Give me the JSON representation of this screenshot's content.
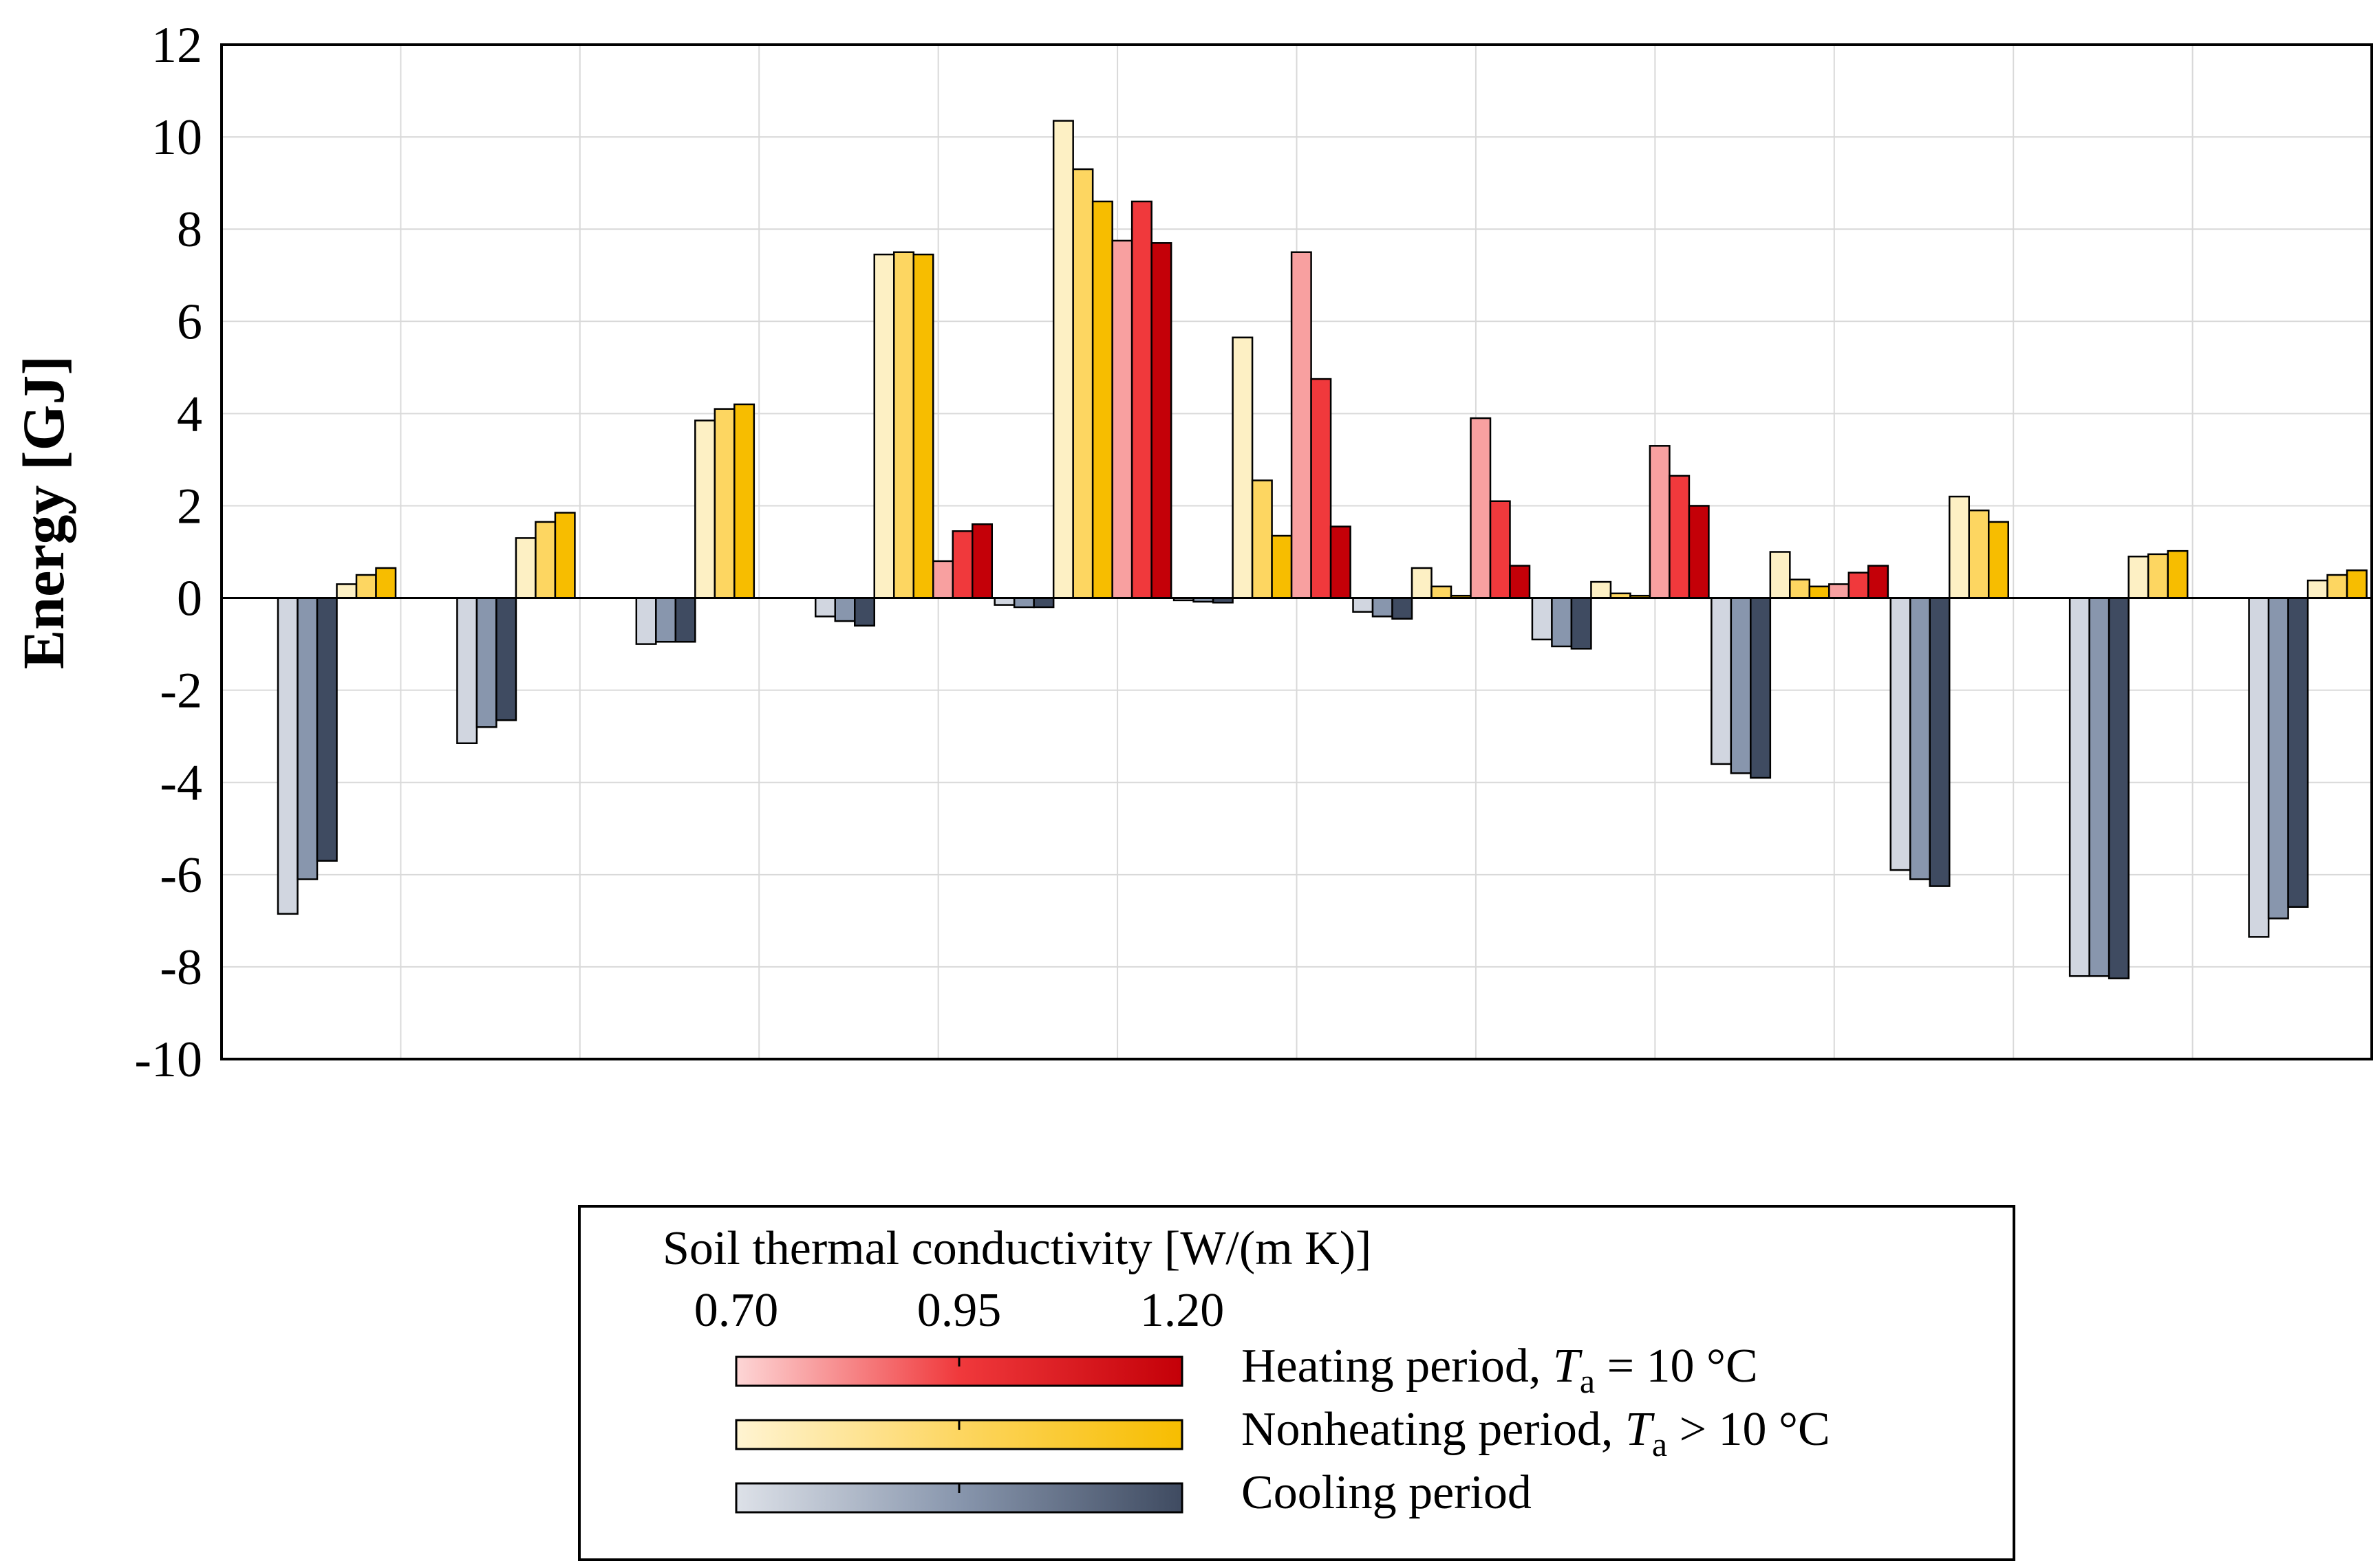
{
  "chart_data": {
    "type": "bar",
    "ylabel": "Energy [GJ]",
    "ylim": [
      -10,
      12
    ],
    "yticks": [
      -10,
      -8,
      -6,
      -4,
      -2,
      0,
      2,
      4,
      6,
      8,
      10,
      12
    ],
    "grid": true,
    "months": 12,
    "conductivity_levels": [
      0.7,
      0.95,
      1.2
    ],
    "series": [
      {
        "name": "Cooling period",
        "colors": [
          "#d1d6e0",
          "#8896ad",
          "#3f4b61"
        ],
        "values": [
          [
            -6.85,
            -6.1,
            -5.7
          ],
          [
            -3.15,
            -2.8,
            -2.65
          ],
          [
            -1.0,
            -0.95,
            -0.95
          ],
          [
            -0.4,
            -0.5,
            -0.6
          ],
          [
            -0.15,
            -0.2,
            -0.2
          ],
          [
            -0.05,
            -0.08,
            -0.1
          ],
          [
            -0.3,
            -0.4,
            -0.45
          ],
          [
            -0.9,
            -1.05,
            -1.1
          ],
          [
            -3.6,
            -3.8,
            -3.9
          ],
          [
            -5.9,
            -6.1,
            -6.25
          ],
          [
            -8.2,
            -8.2,
            -8.25
          ],
          [
            -7.35,
            -6.95,
            -6.7
          ]
        ]
      },
      {
        "name": "Nonheating period",
        "colors": [
          "#fdf0c4",
          "#fdd661",
          "#f7bd00"
        ],
        "values": [
          [
            0.3,
            0.5,
            0.65
          ],
          [
            1.3,
            1.65,
            1.85
          ],
          [
            3.85,
            4.1,
            4.2
          ],
          [
            7.45,
            7.5,
            7.45
          ],
          [
            10.35,
            9.3,
            8.6
          ],
          [
            5.65,
            2.55,
            1.35
          ],
          [
            0.65,
            0.25,
            0.05
          ],
          [
            0.35,
            0.1,
            0.05
          ],
          [
            1.0,
            0.4,
            0.25
          ],
          [
            2.2,
            1.9,
            1.65
          ],
          [
            0.9,
            0.95,
            1.02
          ],
          [
            0.38,
            0.5,
            0.6
          ]
        ]
      },
      {
        "name": "Heating period",
        "colors": [
          "#f8a0a0",
          "#f0393c",
          "#c40008"
        ],
        "values": [
          [
            0,
            0,
            0
          ],
          [
            0,
            0,
            0
          ],
          [
            0,
            0,
            0
          ],
          [
            0.8,
            1.45,
            1.6
          ],
          [
            7.75,
            8.6,
            7.7
          ],
          [
            7.5,
            4.75,
            1.55
          ],
          [
            3.9,
            2.1,
            0.7
          ],
          [
            3.3,
            2.65,
            2.0
          ],
          [
            0.3,
            0.55,
            0.7
          ],
          [
            0,
            0,
            0
          ],
          [
            0,
            0,
            0
          ],
          [
            0,
            0,
            0
          ]
        ]
      }
    ]
  },
  "legend": {
    "title": "Soil thermal conductivity [W/(m K)]",
    "scale_labels": [
      "0.70",
      "0.95",
      "1.20"
    ],
    "entries": [
      {
        "prefix": "Heating period, ",
        "var": "T",
        "sub": "a",
        "suffix": " = 10 °C",
        "from": "#fdd6d6",
        "mid": "#f0393c",
        "to": "#c40008"
      },
      {
        "prefix": "Nonheating period, ",
        "var": "T",
        "sub": "a",
        "suffix": " > 10 °C",
        "from": "#fff4d2",
        "mid": "#fdd661",
        "to": "#f7bd00"
      },
      {
        "prefix": "Cooling period",
        "var": "",
        "sub": "",
        "suffix": "",
        "from": "#dde1e8",
        "mid": "#8896ad",
        "to": "#3f4b61"
      }
    ]
  }
}
